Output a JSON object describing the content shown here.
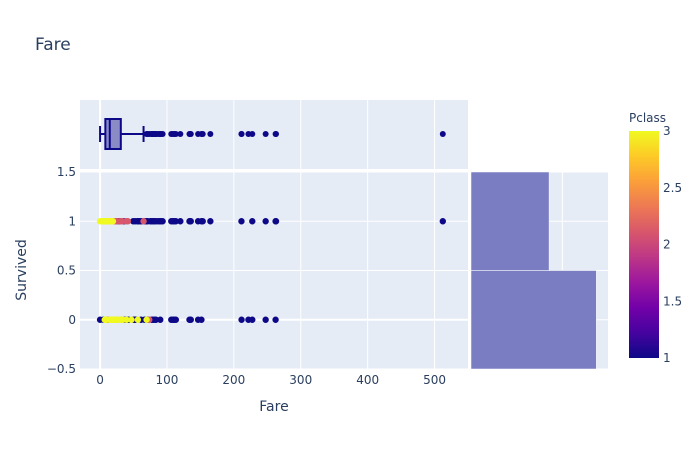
{
  "chart_data": {
    "type": "scatter",
    "title": "Fare",
    "xlabel": "Fare",
    "ylabel": "Survived",
    "xlim": [
      -30,
      550
    ],
    "ylim": [
      -0.5,
      1.5
    ],
    "x_ticks": [
      0,
      100,
      200,
      300,
      400,
      500
    ],
    "y_ticks": [
      -0.5,
      0,
      0.5,
      1,
      1.5
    ],
    "y_tick_labels": [
      "−0.5",
      "0",
      "0.5",
      "1",
      "1.5"
    ],
    "grid": true,
    "marginal_x": {
      "type": "box",
      "q1": 7.9,
      "median": 14.5,
      "q3": 31,
      "lower_fence": 0,
      "upper_fence": 65,
      "outliers": [
        69.55,
        71.28,
        73.5,
        76.73,
        77.29,
        77.96,
        78.85,
        79.2,
        79.65,
        81.86,
        82.17,
        83.16,
        83.48,
        86.5,
        89.1,
        90,
        91.08,
        93.5,
        106.43,
        108.9,
        110.88,
        113.28,
        120,
        133.65,
        134.5,
        135.63,
        146.52,
        151.55,
        153.46,
        164.87,
        211.34,
        211.5,
        221.78,
        227.53,
        247.52,
        262.38,
        263,
        512.33
      ]
    },
    "marginal_y": {
      "type": "histogram",
      "bins": [
        {
          "range": [
            -0.5,
            0.5
          ],
          "count": 549
        },
        {
          "range": [
            0.5,
            1.5
          ],
          "count": 342
        }
      ],
      "max_count": 549
    },
    "colorbar": {
      "title": "Pclass",
      "range": [
        1,
        3
      ],
      "ticks": [
        1,
        1.5,
        2,
        2.5,
        3
      ],
      "ticklabels": [
        "1",
        "1.5",
        "2",
        "2.5",
        "3"
      ]
    },
    "series": [
      {
        "y": 1,
        "points": [
          {
            "x": 7.25,
            "c": 3
          },
          {
            "x": 7.75,
            "c": 3
          },
          {
            "x": 7.9,
            "c": 3
          },
          {
            "x": 8.05,
            "c": 3
          },
          {
            "x": 9.5,
            "c": 3
          },
          {
            "x": 11.13,
            "c": 3
          },
          {
            "x": 12.48,
            "c": 3
          },
          {
            "x": 15.25,
            "c": 3
          },
          {
            "x": 16.7,
            "c": 3
          },
          {
            "x": 19.26,
            "c": 3
          },
          {
            "x": 0,
            "c": 3
          },
          {
            "x": 3.2,
            "c": 3
          },
          {
            "x": 5,
            "c": 3
          },
          {
            "x": 13,
            "c": 2
          },
          {
            "x": 21,
            "c": 2
          },
          {
            "x": 23,
            "c": 2
          },
          {
            "x": 26,
            "c": 2
          },
          {
            "x": 30,
            "c": 2
          },
          {
            "x": 33,
            "c": 2
          },
          {
            "x": 39,
            "c": 2
          },
          {
            "x": 41.58,
            "c": 2
          },
          {
            "x": 65,
            "c": 2
          },
          {
            "x": 26.55,
            "c": 1
          },
          {
            "x": 29.7,
            "c": 1
          },
          {
            "x": 35.5,
            "c": 1
          },
          {
            "x": 49.5,
            "c": 1
          },
          {
            "x": 52.55,
            "c": 1
          },
          {
            "x": 55.9,
            "c": 1
          },
          {
            "x": 57,
            "c": 1
          },
          {
            "x": 59.4,
            "c": 1
          },
          {
            "x": 61.98,
            "c": 1
          },
          {
            "x": 66.6,
            "c": 1
          },
          {
            "x": 69.3,
            "c": 1
          },
          {
            "x": 71.28,
            "c": 1
          },
          {
            "x": 75.25,
            "c": 1
          },
          {
            "x": 76.29,
            "c": 1
          },
          {
            "x": 78.27,
            "c": 1
          },
          {
            "x": 79.2,
            "c": 1
          },
          {
            "x": 81.86,
            "c": 1
          },
          {
            "x": 83.16,
            "c": 1
          },
          {
            "x": 86.5,
            "c": 1
          },
          {
            "x": 89.1,
            "c": 1
          },
          {
            "x": 91.08,
            "c": 1
          },
          {
            "x": 93.5,
            "c": 1
          },
          {
            "x": 106.43,
            "c": 1
          },
          {
            "x": 108.9,
            "c": 1
          },
          {
            "x": 110.88,
            "c": 1
          },
          {
            "x": 113.28,
            "c": 1
          },
          {
            "x": 120,
            "c": 1
          },
          {
            "x": 133.65,
            "c": 1
          },
          {
            "x": 134.5,
            "c": 1
          },
          {
            "x": 135.63,
            "c": 1
          },
          {
            "x": 146.52,
            "c": 1
          },
          {
            "x": 151.55,
            "c": 1
          },
          {
            "x": 153.46,
            "c": 1
          },
          {
            "x": 164.87,
            "c": 1
          },
          {
            "x": 211.34,
            "c": 1
          },
          {
            "x": 227.53,
            "c": 1
          },
          {
            "x": 247.52,
            "c": 1
          },
          {
            "x": 262.38,
            "c": 1
          },
          {
            "x": 263,
            "c": 1
          },
          {
            "x": 512.33,
            "c": 1
          }
        ]
      },
      {
        "y": 0,
        "points": [
          {
            "x": 0,
            "c": 1
          },
          {
            "x": 5,
            "c": 1
          },
          {
            "x": 7.05,
            "c": 3
          },
          {
            "x": 7.25,
            "c": 3
          },
          {
            "x": 7.75,
            "c": 3
          },
          {
            "x": 7.9,
            "c": 3
          },
          {
            "x": 8.05,
            "c": 3
          },
          {
            "x": 9.5,
            "c": 3
          },
          {
            "x": 14.45,
            "c": 3
          },
          {
            "x": 15.5,
            "c": 3
          },
          {
            "x": 16.1,
            "c": 3
          },
          {
            "x": 18,
            "c": 3
          },
          {
            "x": 20.58,
            "c": 3
          },
          {
            "x": 21.08,
            "c": 3
          },
          {
            "x": 22.03,
            "c": 3
          },
          {
            "x": 24.15,
            "c": 3
          },
          {
            "x": 25.47,
            "c": 3
          },
          {
            "x": 27.9,
            "c": 3
          },
          {
            "x": 29.13,
            "c": 3
          },
          {
            "x": 31.28,
            "c": 3
          },
          {
            "x": 31.39,
            "c": 3
          },
          {
            "x": 34.38,
            "c": 3
          },
          {
            "x": 39.69,
            "c": 3
          },
          {
            "x": 46.9,
            "c": 3
          },
          {
            "x": 56.5,
            "c": 3
          },
          {
            "x": 69.55,
            "c": 3
          },
          {
            "x": 10.5,
            "c": 2
          },
          {
            "x": 13,
            "c": 2
          },
          {
            "x": 21,
            "c": 2
          },
          {
            "x": 26,
            "c": 2
          },
          {
            "x": 73.5,
            "c": 2
          },
          {
            "x": 27.72,
            "c": 1
          },
          {
            "x": 30.5,
            "c": 1
          },
          {
            "x": 35.5,
            "c": 1
          },
          {
            "x": 38.5,
            "c": 1
          },
          {
            "x": 42.4,
            "c": 1
          },
          {
            "x": 50,
            "c": 1
          },
          {
            "x": 52,
            "c": 1
          },
          {
            "x": 53.1,
            "c": 1
          },
          {
            "x": 61.18,
            "c": 1
          },
          {
            "x": 66.6,
            "c": 1
          },
          {
            "x": 71,
            "c": 1
          },
          {
            "x": 77.29,
            "c": 1
          },
          {
            "x": 79.65,
            "c": 1
          },
          {
            "x": 82.17,
            "c": 1
          },
          {
            "x": 83.48,
            "c": 1
          },
          {
            "x": 90,
            "c": 1
          },
          {
            "x": 106.43,
            "c": 1
          },
          {
            "x": 108.9,
            "c": 1
          },
          {
            "x": 110.88,
            "c": 1
          },
          {
            "x": 113.28,
            "c": 1
          },
          {
            "x": 133.65,
            "c": 1
          },
          {
            "x": 135.63,
            "c": 1
          },
          {
            "x": 146.52,
            "c": 1
          },
          {
            "x": 151.55,
            "c": 1
          },
          {
            "x": 211.5,
            "c": 1
          },
          {
            "x": 221.78,
            "c": 1
          },
          {
            "x": 227.53,
            "c": 1
          },
          {
            "x": 247.52,
            "c": 1
          },
          {
            "x": 262.38,
            "c": 1
          }
        ]
      }
    ]
  },
  "colors": {
    "plot_bg": "#e5ecf6",
    "grid": "#ffffff",
    "text": "#2a3f5f",
    "box_line": "#0d0887",
    "box_fill": "#8a8ac6",
    "histogram": "#7b7dc2",
    "colorscale": [
      "#0d0887",
      "#46039f",
      "#7201a8",
      "#9c179e",
      "#bd3786",
      "#d8576b",
      "#ed7953",
      "#fb9f3a",
      "#fdca26",
      "#f0f921"
    ]
  }
}
